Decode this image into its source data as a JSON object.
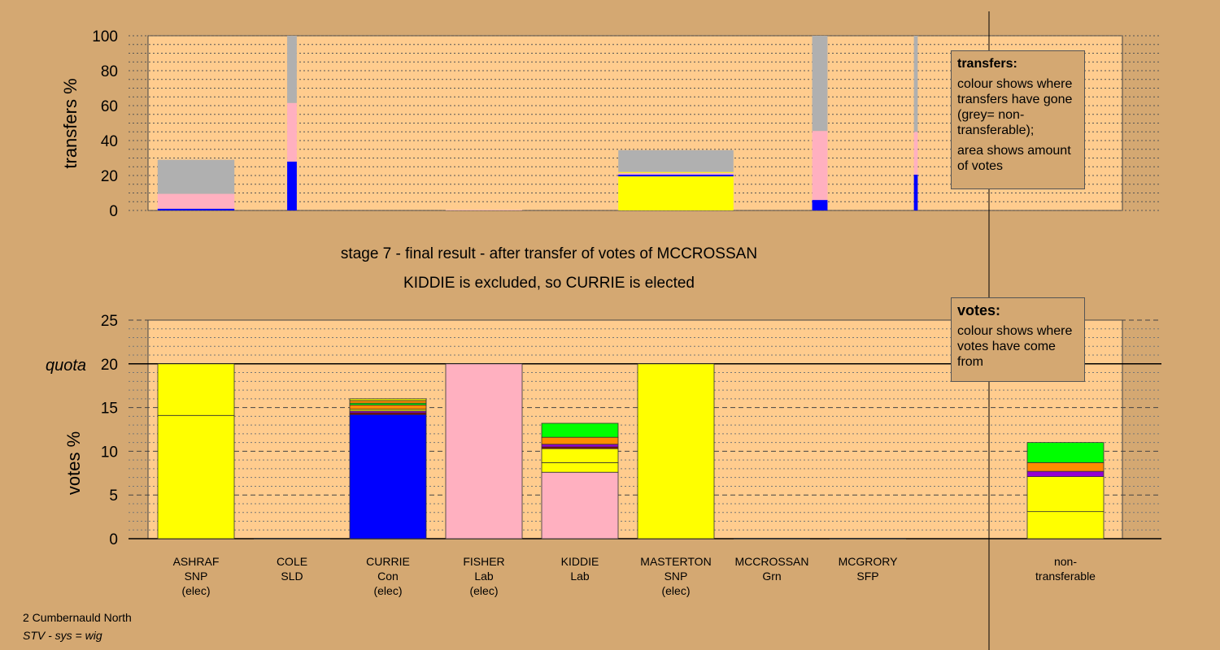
{
  "titles": {
    "stage": "stage 7 - final result - after transfer of votes of MCCROSSAN",
    "result": "KIDDIE is excluded, so CURRIE is elected"
  },
  "footer": {
    "line1": "2 Cumbernauld North",
    "line2": "STV - sys = wig"
  },
  "colors": {
    "background": "#d4a872",
    "plot_bg": "#ffcc8e",
    "SNP": "#ffff00",
    "Con": "#0000ff",
    "Lab": "#ffb0c0",
    "SLD": "#ff8c00",
    "Grn": "#00ff00",
    "SFP": "#9400d3",
    "nontransferable": "#b0b0b0",
    "dark_red": "#8b0000"
  },
  "legends": {
    "transfers": {
      "title": "transfers:",
      "text1": "colour shows where transfers have gone (grey= non-transferable);",
      "text2": "area shows amount of votes"
    },
    "votes": {
      "title": "votes:",
      "text1": "colour shows where votes have come from"
    }
  },
  "chart_data": [
    {
      "type": "bar",
      "stacked": true,
      "ylabel": "transfers %",
      "ylim": [
        0,
        100
      ],
      "yticks": [
        0,
        20,
        40,
        60,
        80,
        100
      ],
      "grid": "dotted",
      "legend_position": "top-right",
      "bars": [
        {
          "x": 0.5,
          "width": 0.8,
          "segments": [
            {
              "to": "Con",
              "value": 1
            },
            {
              "to": "Lab",
              "value": 8.5
            },
            {
              "to": "nontransferable",
              "value": 19.5
            }
          ]
        },
        {
          "x": 1.5,
          "width": 0.1,
          "segments": [
            {
              "to": "Con",
              "value": 28
            },
            {
              "to": "Lab",
              "value": 33.5
            },
            {
              "to": "nontransferable",
              "value": 38.5
            }
          ]
        },
        {
          "x": 3.5,
          "width": 0.8,
          "segments": [
            {
              "to": "Lab",
              "value": 0.3
            }
          ]
        },
        {
          "x": 5.5,
          "width": 1.2,
          "segments": [
            {
              "to": "SNP",
              "value": 19.5
            },
            {
              "to": "Con",
              "value": 1
            },
            {
              "to": "Lab",
              "value": 1
            },
            {
              "to": "SNP",
              "value": 0.5
            },
            {
              "to": "nontransferable",
              "value": 12.5
            }
          ]
        },
        {
          "x": 7.0,
          "width": 0.16,
          "segments": [
            {
              "to": "Con",
              "value": 6
            },
            {
              "to": "Lab",
              "value": 39.5
            },
            {
              "to": "nontransferable",
              "value": 54.5
            }
          ]
        },
        {
          "x": 8.0,
          "width": 0.04,
          "segments": [
            {
              "to": "Con",
              "value": 20.5
            },
            {
              "to": "Lab",
              "value": 24.5
            },
            {
              "to": "nontransferable",
              "value": 55
            }
          ]
        }
      ]
    },
    {
      "type": "bar",
      "stacked": true,
      "ylabel": "votes %",
      "ylim": [
        0,
        25
      ],
      "yticks": [
        0,
        5,
        10,
        15,
        20,
        25
      ],
      "quota": 20,
      "quota_label": "quota",
      "grid": "dashed",
      "legend_position": "top-right",
      "categories": [
        {
          "name": "ASHRAF",
          "party": "SNP",
          "status": "(elec)"
        },
        {
          "name": "COLE",
          "party": "SLD",
          "status": ""
        },
        {
          "name": "CURRIE",
          "party": "Con",
          "status": "(elec)"
        },
        {
          "name": "FISHER",
          "party": "Lab",
          "status": "(elec)"
        },
        {
          "name": "KIDDIE",
          "party": "Lab",
          "status": ""
        },
        {
          "name": "MASTERTON",
          "party": "SNP",
          "status": "(elec)"
        },
        {
          "name": "MCCROSSAN",
          "party": "Grn",
          "status": ""
        },
        {
          "name": "MCGRORY",
          "party": "SFP",
          "status": ""
        },
        {
          "name": "non-transferable",
          "party": "",
          "status": ""
        }
      ],
      "bars": [
        {
          "segments": [
            {
              "from": "SNP",
              "value": 14.1
            },
            {
              "from": "SNP",
              "value": 5.9
            }
          ]
        },
        {
          "segments": []
        },
        {
          "segments": [
            {
              "from": "Con",
              "value": 14.2
            },
            {
              "from": "dark_red",
              "value": 0.2
            },
            {
              "from": "SFP",
              "value": 0.2
            },
            {
              "from": "SNP",
              "value": 0.2
            },
            {
              "from": "SLD",
              "value": 0.5
            },
            {
              "from": "Grn",
              "value": 0.2
            },
            {
              "from": "SLD",
              "value": 0.3
            },
            {
              "from": "SNP",
              "value": 0.2
            }
          ]
        },
        {
          "segments": [
            {
              "from": "Lab",
              "value": 20
            }
          ]
        },
        {
          "segments": [
            {
              "from": "Lab",
              "value": 7.6
            },
            {
              "from": "SNP",
              "value": 1.1
            },
            {
              "from": "SNP",
              "value": 1.6
            },
            {
              "from": "dark_red",
              "value": 0.2
            },
            {
              "from": "SFP",
              "value": 0.3
            },
            {
              "from": "SLD",
              "value": 0.8
            },
            {
              "from": "Grn",
              "value": 1.6
            }
          ]
        },
        {
          "segments": [
            {
              "from": "SNP",
              "value": 20
            }
          ]
        },
        {
          "segments": []
        },
        {
          "segments": []
        },
        {
          "segments": [
            {
              "from": "SNP",
              "value": 3.1
            },
            {
              "from": "SNP",
              "value": 4.0
            },
            {
              "from": "SFP",
              "value": 0.6
            },
            {
              "from": "SLD",
              "value": 1.0
            },
            {
              "from": "Grn",
              "value": 2.3
            }
          ]
        }
      ]
    }
  ]
}
